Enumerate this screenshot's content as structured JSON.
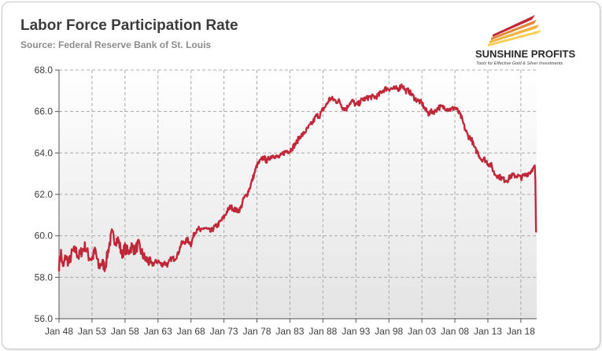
{
  "header": {
    "title": "Labor Force Participation Rate",
    "subtitle": "Source: Federal Reserve Bank of St. Louis"
  },
  "logo": {
    "name": "SUNSHINE PROFITS",
    "tagline": "Tools for Effective Gold & Silver Investments"
  },
  "colors": {
    "line": "#c0283a",
    "plot_background_top": "#ffffff",
    "plot_background_bottom": "#e4e4e4",
    "grid": "#a9a9a9",
    "text": "#3c3c3c"
  },
  "chart_data": {
    "type": "line",
    "title": "Labor Force Participation Rate",
    "subtitle": "Source: Federal Reserve Bank of St. Louis",
    "xlabel": "",
    "ylabel": "",
    "ylim": [
      56.0,
      68.0
    ],
    "xlim": [
      1948.0,
      2020.4
    ],
    "grid": true,
    "y_ticks": [
      "56.0",
      "58.0",
      "60.0",
      "62.0",
      "64.0",
      "66.0",
      "68.0"
    ],
    "y_tick_values": [
      56,
      58,
      60,
      62,
      64,
      66,
      68
    ],
    "x_ticks": [
      "Jan 48",
      "Jan 53",
      "Jan 58",
      "Jan 63",
      "Jan 68",
      "Jan 73",
      "Jan 78",
      "Jan 83",
      "Jan 88",
      "Jan 93",
      "Jan 98",
      "Jan 03",
      "Jan 08",
      "Jan 13",
      "Jan 18"
    ],
    "x_tick_values": [
      1948,
      1953,
      1958,
      1963,
      1968,
      1973,
      1978,
      1983,
      1988,
      1993,
      1998,
      2003,
      2008,
      2013,
      2018
    ],
    "series": [
      {
        "name": "Labor Force Participation Rate",
        "x": [
          1948.0,
          1948.3,
          1948.6,
          1949.0,
          1949.5,
          1950.0,
          1950.5,
          1951.0,
          1951.5,
          1952.0,
          1952.5,
          1953.0,
          1953.5,
          1954.0,
          1954.5,
          1955.0,
          1955.5,
          1956.0,
          1956.5,
          1957.0,
          1957.5,
          1958.0,
          1958.5,
          1959.0,
          1959.5,
          1960.0,
          1960.5,
          1961.0,
          1961.5,
          1962.0,
          1962.5,
          1963.0,
          1963.5,
          1964.0,
          1964.5,
          1965.0,
          1965.5,
          1966.0,
          1966.5,
          1967.0,
          1967.5,
          1968.0,
          1968.5,
          1969.0,
          1969.5,
          1970.0,
          1970.5,
          1971.0,
          1971.5,
          1972.0,
          1972.5,
          1973.0,
          1973.5,
          1974.0,
          1974.5,
          1975.0,
          1975.5,
          1976.0,
          1976.5,
          1977.0,
          1977.5,
          1978.0,
          1978.5,
          1979.0,
          1979.5,
          1980.0,
          1980.5,
          1981.0,
          1981.5,
          1982.0,
          1982.5,
          1983.0,
          1983.5,
          1984.0,
          1984.5,
          1985.0,
          1985.5,
          1986.0,
          1986.5,
          1987.0,
          1987.5,
          1988.0,
          1988.5,
          1989.0,
          1989.5,
          1990.0,
          1990.5,
          1991.0,
          1991.5,
          1992.0,
          1992.5,
          1993.0,
          1993.5,
          1994.0,
          1994.5,
          1995.0,
          1995.5,
          1996.0,
          1996.5,
          1997.0,
          1997.5,
          1998.0,
          1998.5,
          1999.0,
          1999.5,
          2000.0,
          2000.5,
          2001.0,
          2001.5,
          2002.0,
          2002.5,
          2003.0,
          2003.5,
          2004.0,
          2004.5,
          2005.0,
          2005.5,
          2006.0,
          2006.5,
          2007.0,
          2007.5,
          2008.0,
          2008.5,
          2009.0,
          2009.5,
          2010.0,
          2010.5,
          2011.0,
          2011.5,
          2012.0,
          2012.5,
          2013.0,
          2013.5,
          2014.0,
          2014.5,
          2015.0,
          2015.5,
          2016.0,
          2016.5,
          2017.0,
          2017.5,
          2018.0,
          2018.5,
          2019.0,
          2019.5,
          2019.9,
          2020.1,
          2020.2,
          2020.3
        ],
        "values": [
          58.6,
          59.2,
          58.4,
          59.0,
          58.7,
          59.2,
          59.3,
          59.0,
          59.3,
          59.5,
          59.0,
          58.9,
          59.3,
          58.5,
          58.7,
          58.5,
          59.4,
          60.1,
          59.8,
          59.8,
          59.1,
          59.4,
          59.2,
          59.5,
          59.3,
          59.6,
          59.2,
          58.9,
          58.8,
          58.6,
          58.7,
          58.8,
          58.6,
          58.7,
          58.6,
          58.9,
          58.9,
          59.1,
          59.6,
          59.7,
          59.8,
          59.6,
          60.1,
          60.4,
          60.2,
          60.4,
          60.3,
          60.2,
          60.4,
          60.5,
          60.7,
          60.9,
          61.2,
          61.4,
          61.3,
          61.2,
          61.3,
          61.8,
          62.0,
          62.4,
          62.9,
          63.4,
          63.6,
          63.8,
          63.6,
          63.8,
          63.9,
          63.8,
          63.8,
          64.0,
          64.1,
          64.1,
          64.3,
          64.5,
          64.8,
          64.9,
          65.1,
          65.3,
          65.5,
          65.8,
          65.8,
          66.1,
          66.3,
          66.6,
          66.6,
          66.5,
          66.5,
          66.2,
          66.1,
          66.4,
          66.5,
          66.3,
          66.4,
          66.6,
          66.6,
          66.7,
          66.7,
          66.7,
          66.8,
          67.0,
          67.1,
          67.1,
          67.1,
          67.1,
          67.1,
          67.3,
          67.0,
          67.0,
          66.8,
          66.6,
          66.5,
          66.4,
          66.1,
          65.9,
          66.0,
          66.0,
          66.2,
          66.2,
          66.2,
          66.1,
          66.1,
          66.2,
          66.0,
          65.7,
          65.2,
          64.8,
          64.7,
          64.2,
          64.0,
          63.7,
          63.7,
          63.5,
          63.4,
          63.0,
          62.9,
          62.8,
          62.7,
          62.7,
          62.9,
          62.9,
          62.9,
          62.8,
          62.9,
          63.0,
          63.1,
          63.3,
          63.4,
          62.7,
          60.2
        ]
      }
    ]
  }
}
